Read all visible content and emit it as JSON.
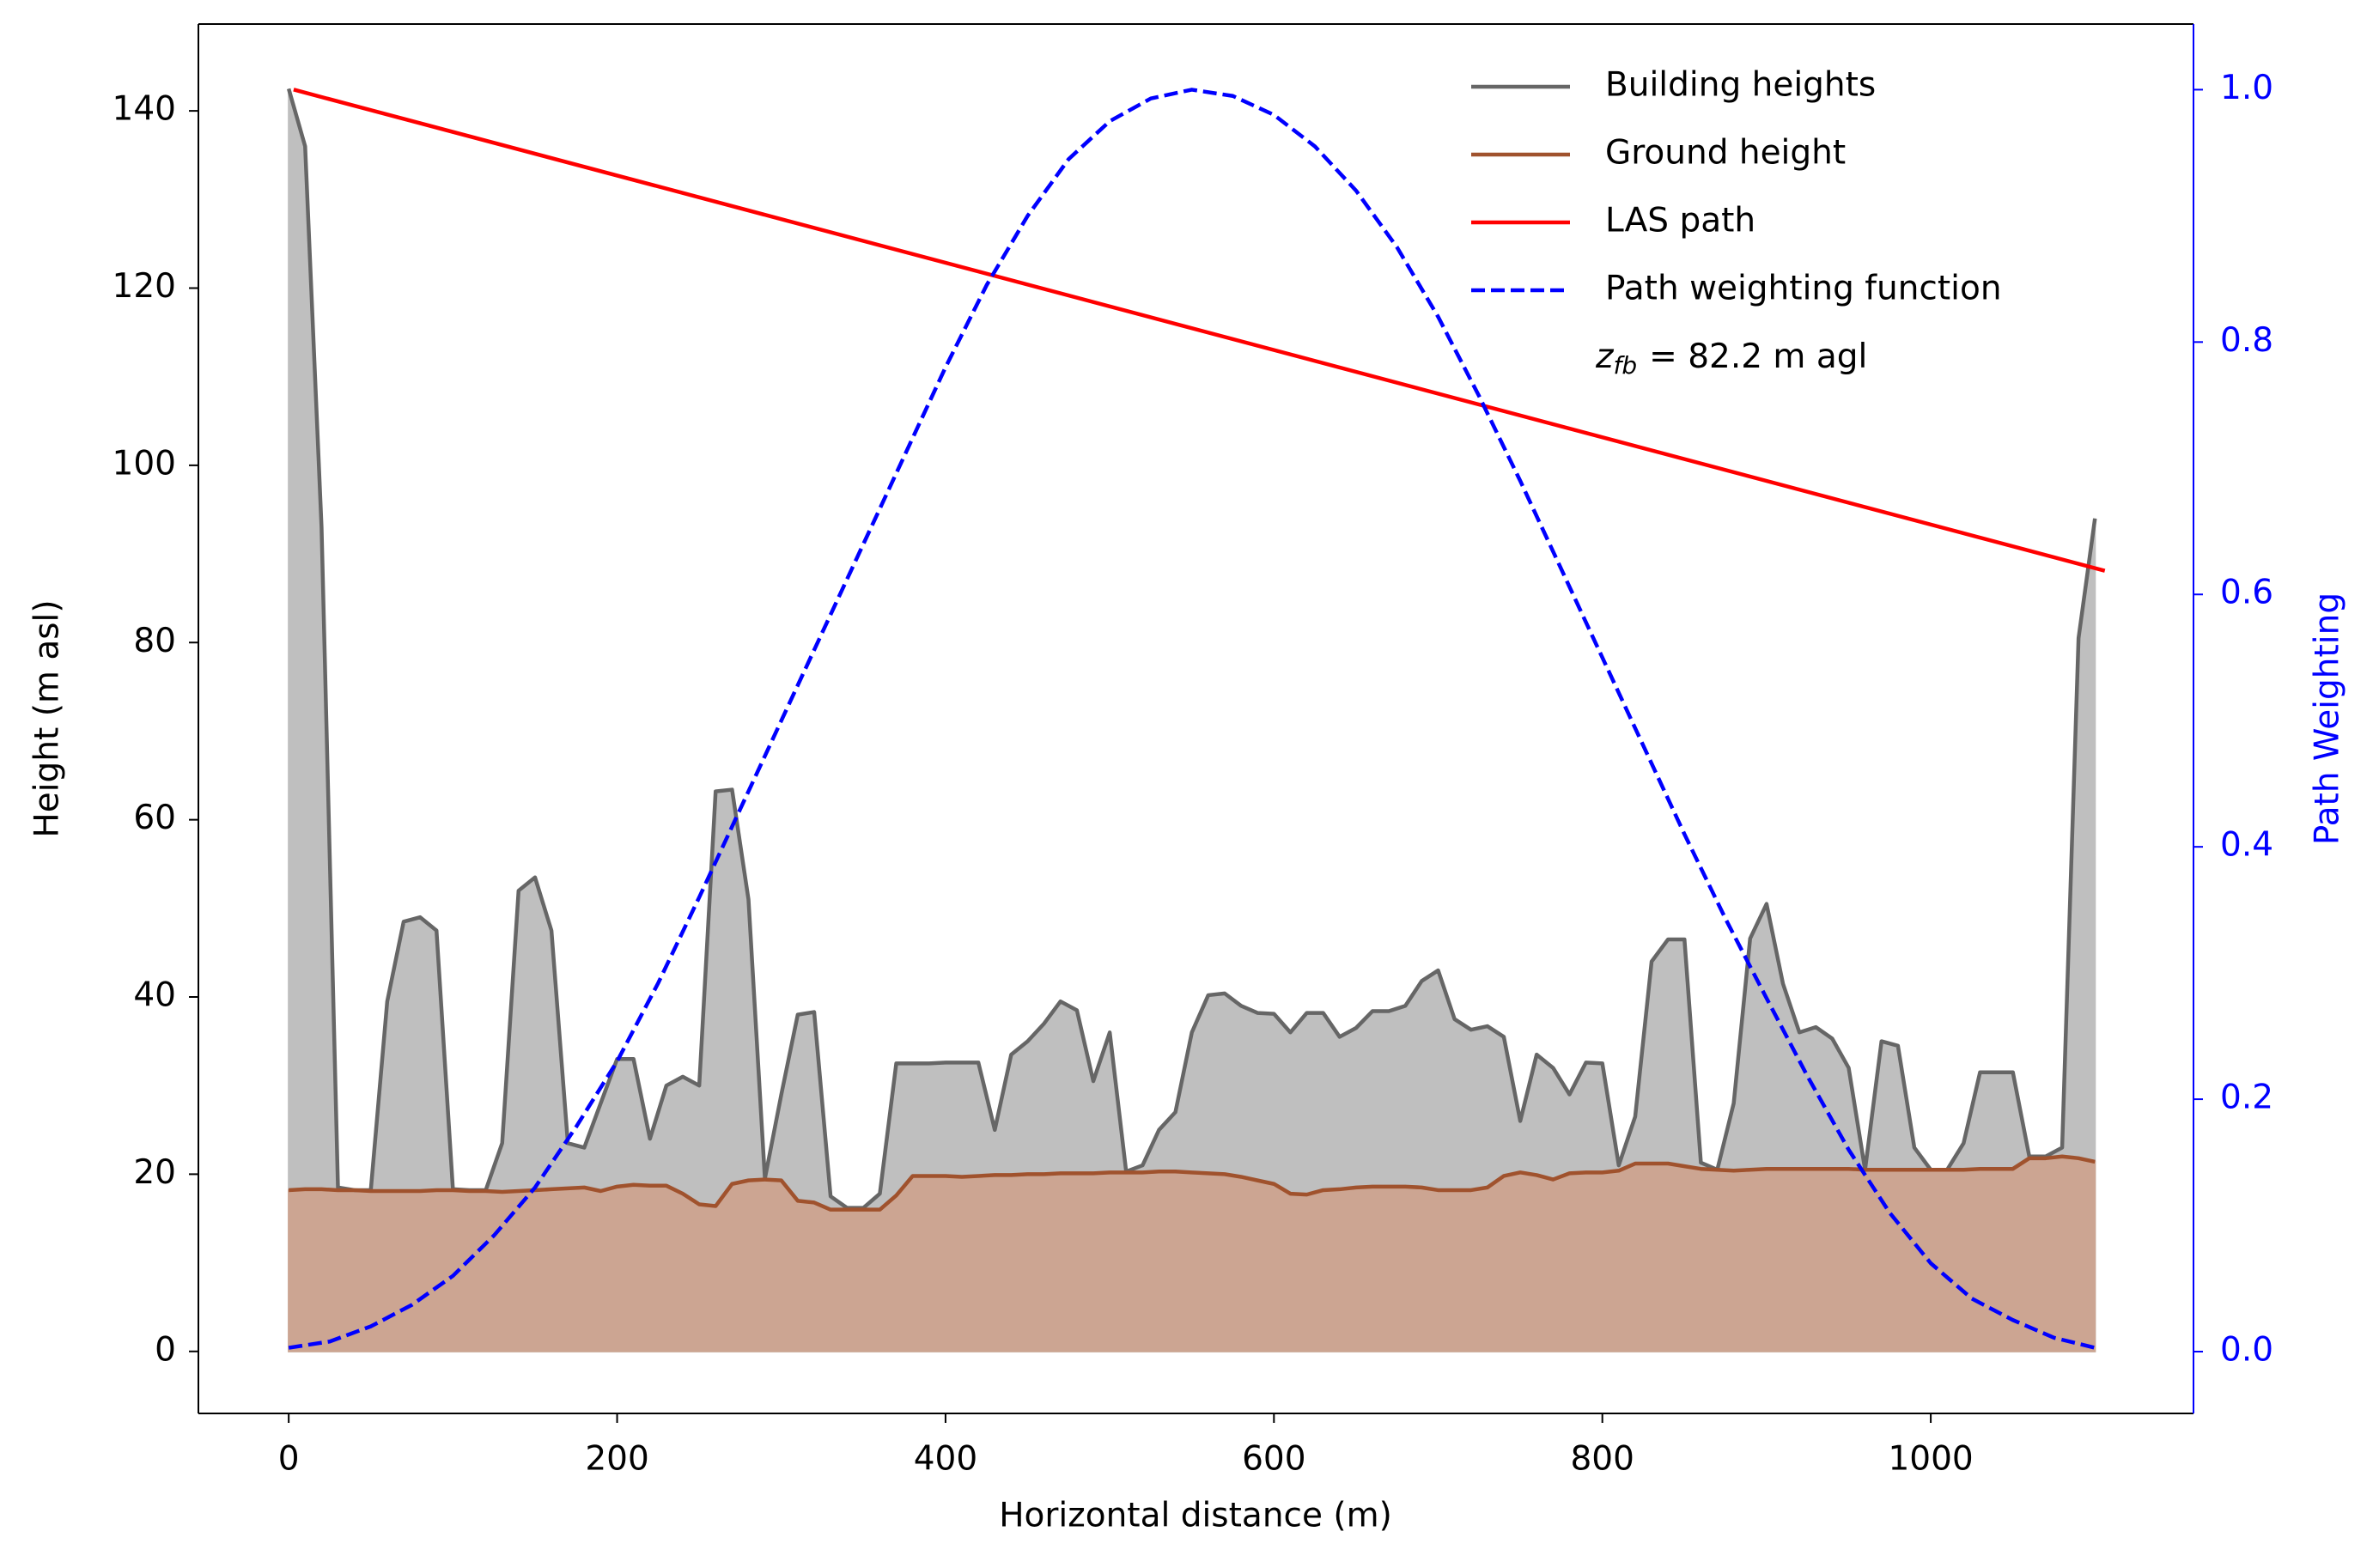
{
  "chart_data": {
    "type": "line",
    "xlabel": "Horizontal distance (m)",
    "ylabel": "Height (m asl)",
    "y2label": "Path Weighting",
    "xlim": [
      -55,
      1160
    ],
    "ylim": [
      -7,
      149.8
    ],
    "y2lim": [
      -0.049,
      1.052
    ],
    "xticks": [
      0,
      200,
      400,
      600,
      800,
      1000
    ],
    "yticks": [
      0,
      20,
      40,
      60,
      80,
      100,
      120,
      140
    ],
    "y2ticks": [
      {
        "value": 0,
        "label": "0.0"
      },
      {
        "value": 0.2,
        "label": "0.2"
      },
      {
        "value": 0.4,
        "label": "0.4"
      },
      {
        "value": 0.6,
        "label": "0.6"
      },
      {
        "value": 0.8,
        "label": "0.8"
      },
      {
        "value": 1,
        "label": "1.0"
      }
    ],
    "y2_color": "#0000ff",
    "legend": "upper right",
    "annotation": {
      "symbol": "z",
      "subscript": "fb",
      "text": "= 82.2 m agl"
    },
    "series": [
      {
        "name": "Building heights",
        "color": "#666666",
        "fill": "#bfbfbf",
        "linestyle": "solid",
        "x": [
          0,
          10,
          20,
          30,
          40,
          50,
          60,
          70,
          80,
          90,
          100,
          110,
          120,
          130,
          140,
          150,
          160,
          170,
          180,
          190,
          200,
          210,
          220,
          230,
          240,
          250,
          260,
          270,
          280,
          290,
          300,
          310,
          320,
          330,
          340,
          350,
          360,
          370,
          380,
          390,
          400,
          410,
          420,
          430,
          440,
          450,
          460,
          470,
          480,
          490,
          500,
          510,
          520,
          530,
          540,
          550,
          560,
          570,
          580,
          590,
          600,
          610,
          620,
          630,
          640,
          650,
          660,
          670,
          680,
          690,
          700,
          710,
          720,
          730,
          740,
          750,
          760,
          770,
          780,
          790,
          800,
          810,
          820,
          830,
          840,
          850,
          860,
          870,
          880,
          890,
          900,
          910,
          920,
          930,
          940,
          950,
          960,
          970,
          980,
          990,
          1000,
          1010,
          1020,
          1030,
          1040,
          1050,
          1060,
          1070,
          1080,
          1090,
          1100
        ],
        "values": [
          142.5,
          136,
          93,
          18.5,
          18.2,
          18.2,
          39.5,
          48.5,
          49,
          47.5,
          18.3,
          18.2,
          18.2,
          23.5,
          52,
          53.5,
          47.5,
          23.5,
          23,
          28,
          33,
          33,
          24,
          30,
          31,
          30,
          63.2,
          63.4,
          51,
          19.5,
          29,
          38,
          38.3,
          17.5,
          16.2,
          16.2,
          17.8,
          32.5,
          32.5,
          32.5,
          32.6,
          32.6,
          32.6,
          25,
          33.5,
          35,
          37,
          39.5,
          38.5,
          30.5,
          36,
          20.3,
          21,
          25,
          27,
          36,
          40.2,
          40.4,
          39,
          38.2,
          38.1,
          36,
          38.2,
          38.2,
          35.5,
          36.5,
          38.4,
          38.4,
          39,
          41.8,
          43,
          37.5,
          36.3,
          36.7,
          35.5,
          26,
          33.5,
          32,
          29,
          32.6,
          32.5,
          21,
          26.5,
          44,
          46.5,
          46.5,
          21.3,
          20.5,
          28,
          46.6,
          50.5,
          41.5,
          36,
          36.6,
          35.3,
          32,
          20.5,
          35,
          34.5,
          23,
          20.5,
          20.5,
          23.5,
          31.5,
          31.5,
          31.5,
          22,
          22,
          23,
          80.5,
          94
        ]
      },
      {
        "name": "Ground height",
        "color": "#a0522d",
        "fill": "#cca592",
        "linestyle": "solid",
        "x": [
          0,
          10,
          20,
          30,
          40,
          50,
          60,
          70,
          80,
          90,
          100,
          110,
          120,
          130,
          140,
          150,
          160,
          170,
          180,
          190,
          200,
          210,
          220,
          230,
          240,
          250,
          260,
          270,
          280,
          290,
          300,
          310,
          320,
          330,
          340,
          350,
          360,
          370,
          380,
          390,
          400,
          410,
          420,
          430,
          440,
          450,
          460,
          470,
          480,
          490,
          500,
          510,
          520,
          530,
          540,
          550,
          560,
          570,
          580,
          590,
          600,
          610,
          620,
          630,
          640,
          650,
          660,
          670,
          680,
          690,
          700,
          710,
          720,
          730,
          740,
          750,
          760,
          770,
          780,
          790,
          800,
          810,
          820,
          830,
          840,
          850,
          860,
          870,
          880,
          890,
          900,
          910,
          920,
          930,
          940,
          950,
          960,
          970,
          980,
          990,
          1000,
          1010,
          1020,
          1030,
          1040,
          1050,
          1060,
          1070,
          1080,
          1090,
          1100
        ],
        "values": [
          18.2,
          18.3,
          18.3,
          18.2,
          18.2,
          18.1,
          18.1,
          18.1,
          18.1,
          18.2,
          18.2,
          18.1,
          18.1,
          18,
          18.1,
          18.2,
          18.3,
          18.4,
          18.5,
          18.1,
          18.6,
          18.8,
          18.7,
          18.7,
          17.8,
          16.6,
          16.4,
          18.9,
          19.3,
          19.4,
          19.3,
          17,
          16.8,
          16,
          16,
          16,
          16,
          17.6,
          19.8,
          19.8,
          19.8,
          19.7,
          19.8,
          19.9,
          19.9,
          20,
          20,
          20.1,
          20.1,
          20.1,
          20.2,
          20.2,
          20.2,
          20.3,
          20.3,
          20.2,
          20.1,
          20,
          19.7,
          19.3,
          18.9,
          17.8,
          17.7,
          18.2,
          18.3,
          18.5,
          18.6,
          18.6,
          18.6,
          18.5,
          18.2,
          18.2,
          18.2,
          18.5,
          19.8,
          20.2,
          19.9,
          19.4,
          20.1,
          20.2,
          20.2,
          20.4,
          21.2,
          21.2,
          21.2,
          20.9,
          20.6,
          20.5,
          20.4,
          20.5,
          20.6,
          20.6,
          20.6,
          20.6,
          20.6,
          20.6,
          20.5,
          20.5,
          20.5,
          20.5,
          20.5,
          20.5,
          20.5,
          20.6,
          20.6,
          20.6,
          21.8,
          21.8,
          22,
          21.8,
          21.4
        ]
      },
      {
        "name": "LAS path",
        "color": "#ff0000",
        "linestyle": "solid",
        "x": [
          3,
          1106
        ],
        "values": [
          142.4,
          88.1
        ]
      },
      {
        "name": "Path weighting function",
        "color": "#0000ff",
        "linestyle": "dashed",
        "axis": "y2",
        "x": [
          0,
          25,
          50,
          75,
          100,
          125,
          150,
          175,
          200,
          225,
          250,
          275,
          300,
          325,
          350,
          375,
          400,
          425,
          450,
          475,
          500,
          525,
          550,
          575,
          600,
          625,
          650,
          675,
          700,
          725,
          750,
          775,
          800,
          825,
          850,
          875,
          900,
          925,
          950,
          975,
          1000,
          1025,
          1050,
          1075,
          1100
        ],
        "values": [
          0.003,
          0.008,
          0.02,
          0.037,
          0.06,
          0.092,
          0.13,
          0.178,
          0.23,
          0.292,
          0.36,
          0.43,
          0.5,
          0.57,
          0.64,
          0.71,
          0.78,
          0.845,
          0.9,
          0.945,
          0.975,
          0.993,
          1.0,
          0.995,
          0.98,
          0.955,
          0.92,
          0.875,
          0.82,
          0.757,
          0.69,
          0.62,
          0.55,
          0.48,
          0.41,
          0.343,
          0.28,
          0.218,
          0.16,
          0.11,
          0.07,
          0.042,
          0.025,
          0.011,
          0.003
        ]
      }
    ]
  }
}
